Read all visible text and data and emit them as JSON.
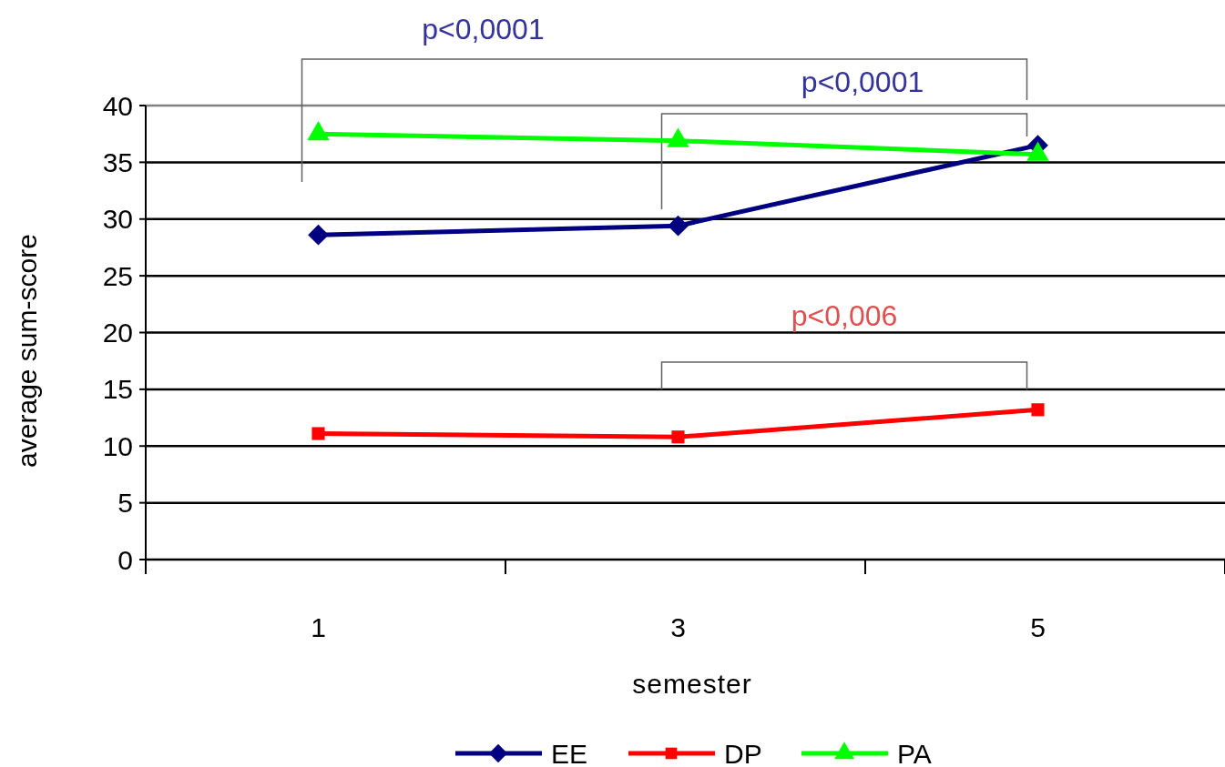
{
  "chart_data": {
    "type": "line",
    "xlabel": "semester",
    "ylabel": "average sum-score",
    "categories": [
      "1",
      "3",
      "5"
    ],
    "series": [
      {
        "name": "EE",
        "color": "#000080",
        "values": [
          28.6,
          29.4,
          36.5
        ],
        "marker": "diamond"
      },
      {
        "name": "DP",
        "color": "#ff0000",
        "values": [
          11.1,
          10.8,
          13.2
        ],
        "marker": "square"
      },
      {
        "name": "PA",
        "color": "#00ff00",
        "values": [
          37.5,
          36.9,
          35.7
        ],
        "marker": "triangle"
      }
    ],
    "ylim": [
      0,
      40
    ],
    "yticks": [
      0,
      5,
      10,
      15,
      20,
      25,
      30,
      35,
      40
    ],
    "grid": "y",
    "legend": "bottom",
    "annotations": [
      "p<0,0001",
      "p<0,0001",
      "p<0,006"
    ]
  }
}
